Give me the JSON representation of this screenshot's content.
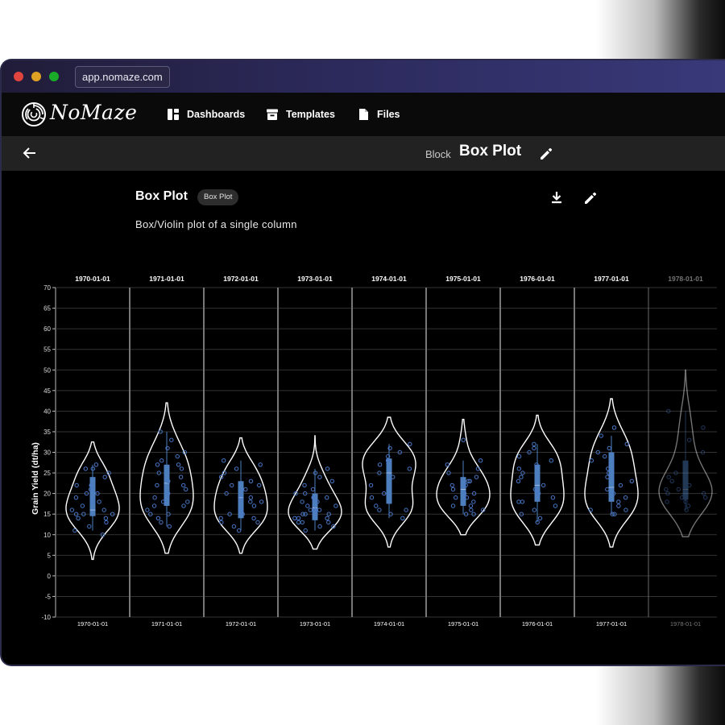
{
  "browser": {
    "url": "app.nomaze.com"
  },
  "brand": {
    "name": "NoMaze",
    "logo_icon": "maze-logo-icon"
  },
  "nav": {
    "items": [
      {
        "label": "Dashboards",
        "icon": "dashboard-icon"
      },
      {
        "label": "Templates",
        "icon": "archive-icon"
      },
      {
        "label": "Files",
        "icon": "file-icon"
      }
    ]
  },
  "subheader": {
    "prefix": "Block",
    "title": "Box Plot"
  },
  "card": {
    "title": "Box Plot",
    "tag": "Box Plot",
    "description": "Box/Violin plot of a single column"
  },
  "colors": {
    "accent": "#4a78c8",
    "box": "#4d7fbf",
    "violin": "#ffffff",
    "background": "#000000",
    "grid": "#333333"
  },
  "chart_data": {
    "type": "violin",
    "ylabel": "Grain Yield (dt/ha)",
    "xlabel": "",
    "ylim": [
      -10,
      70
    ],
    "yticks": [
      -10,
      -5,
      0,
      5,
      10,
      15,
      20,
      25,
      30,
      35,
      40,
      45,
      50,
      55,
      60,
      65,
      70
    ],
    "grid": true,
    "categories": [
      "1970-01-01",
      "1971-01-01",
      "1972-01-01",
      "1973-01-01",
      "1974-01-01",
      "1975-01-01",
      "1976-01-01",
      "1977-01-01",
      "1978-01-01"
    ],
    "series": [
      {
        "category": "1970-01-01",
        "violin_range": [
          4,
          32.5
        ],
        "box": {
          "q1": 14.5,
          "median": 16,
          "q3": 24,
          "whisker_low": 11,
          "whisker_high": 27
        },
        "points": [
          10,
          11,
          12,
          13,
          14,
          14,
          15,
          15,
          15,
          16,
          16,
          17,
          18,
          18,
          19,
          20,
          20,
          21,
          22,
          22,
          24,
          25,
          26,
          26,
          27
        ]
      },
      {
        "category": "1971-01-01",
        "violin_range": [
          5.5,
          42
        ],
        "box": {
          "q1": 17,
          "median": 22.5,
          "q3": 27,
          "whisker_low": 12,
          "whisker_high": 35
        },
        "points": [
          12,
          13,
          14,
          15,
          15,
          16,
          17,
          17,
          18,
          18,
          19,
          20,
          21,
          22,
          22,
          23,
          24,
          25,
          26,
          27,
          27,
          28,
          29,
          30,
          31,
          33,
          35
        ]
      },
      {
        "category": "1972-01-01",
        "violin_range": [
          5.5,
          33.5
        ],
        "box": {
          "q1": 14,
          "median": 19,
          "q3": 23,
          "whisker_low": 11,
          "whisker_high": 28
        },
        "points": [
          11,
          12,
          13,
          13,
          14,
          14,
          15,
          15,
          16,
          17,
          18,
          18,
          19,
          19,
          20,
          21,
          22,
          22,
          23,
          24,
          25,
          26,
          27,
          28
        ]
      },
      {
        "category": "1973-01-01",
        "violin_range": [
          6.5,
          34
        ],
        "box": {
          "q1": 13.5,
          "median": 16.5,
          "q3": 20,
          "whisker_low": 11,
          "whisker_high": 26
        },
        "points": [
          11,
          12,
          12,
          13,
          13,
          13,
          14,
          14,
          14,
          15,
          15,
          15,
          16,
          16,
          16,
          17,
          17,
          18,
          18,
          19,
          19,
          20,
          20,
          21,
          22,
          23,
          24,
          25,
          26
        ]
      },
      {
        "category": "1974-01-01",
        "violin_range": [
          7,
          38.5
        ],
        "box": {
          "q1": 17.5,
          "median": 25,
          "q3": 28.5,
          "whisker_low": 14,
          "whisker_high": 32
        },
        "points": [
          14,
          15,
          16,
          16,
          17,
          19,
          20,
          22,
          24,
          25,
          26,
          27,
          28,
          29,
          30,
          31,
          32
        ]
      },
      {
        "category": "1975-01-01",
        "violin_range": [
          10,
          38
        ],
        "box": {
          "q1": 17,
          "median": 21,
          "q3": 24,
          "whisker_low": 15,
          "whisker_high": 28
        },
        "points": [
          15,
          15,
          16,
          16,
          17,
          17,
          18,
          19,
          19,
          20,
          20,
          21,
          22,
          22,
          23,
          23,
          24,
          25,
          26,
          27,
          28,
          33
        ]
      },
      {
        "category": "1976-01-01",
        "violin_range": [
          7.5,
          39
        ],
        "box": {
          "q1": 18,
          "median": 22,
          "q3": 27,
          "whisker_low": 13,
          "whisker_high": 32
        },
        "points": [
          13,
          14,
          15,
          16,
          17,
          18,
          18,
          19,
          20,
          21,
          22,
          23,
          24,
          25,
          26,
          27,
          28,
          29,
          30,
          31,
          32
        ]
      },
      {
        "category": "1977-01-01",
        "violin_range": [
          7,
          43
        ],
        "box": {
          "q1": 18,
          "median": 21.5,
          "q3": 30,
          "whisker_low": 15,
          "whisker_high": 34
        },
        "points": [
          15,
          15,
          16,
          16,
          17,
          18,
          19,
          20,
          21,
          22,
          23,
          24,
          25,
          26,
          28,
          29,
          30,
          31,
          32,
          34,
          36
        ]
      },
      {
        "category": "1978-01-01",
        "violin_range": [
          9.5,
          50
        ],
        "box": {
          "q1": 18.5,
          "median": 21,
          "q3": 28,
          "whisker_low": 16,
          "whisker_high": 40
        },
        "points": [
          16,
          17,
          18,
          18,
          19,
          19,
          20,
          20,
          21,
          21,
          22,
          23,
          24,
          25,
          27,
          30,
          33,
          36,
          40
        ]
      }
    ]
  }
}
